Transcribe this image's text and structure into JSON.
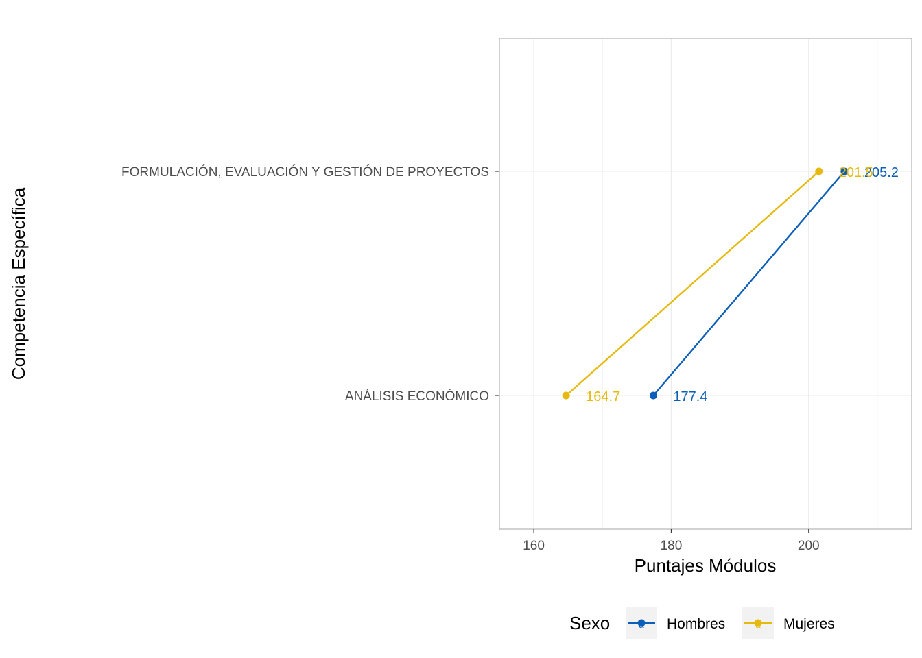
{
  "chart_data": {
    "type": "line",
    "xlabel": "Puntajes Módulos",
    "ylabel": "Competencia Específica",
    "xlim": [
      155,
      215
    ],
    "x_ticks": [
      160,
      180,
      200
    ],
    "categories": [
      "ANÁLISIS ECONÓMICO",
      "FORMULACIÓN, EVALUACIÓN Y GESTIÓN DE PROYECTOS"
    ],
    "series": [
      {
        "name": "Hombres",
        "color": "#0c5fb9",
        "values": [
          177.4,
          205.2
        ],
        "labels": [
          "177.4",
          "205.2"
        ]
      },
      {
        "name": "Mujeres",
        "color": "#e6b90f",
        "values": [
          164.7,
          201.5
        ],
        "labels": [
          "164.7",
          "201.5"
        ]
      }
    ],
    "legend": {
      "title": "Sexo",
      "position": "bottom",
      "key_glyph": "a"
    },
    "grid": true,
    "panel_border": true
  }
}
